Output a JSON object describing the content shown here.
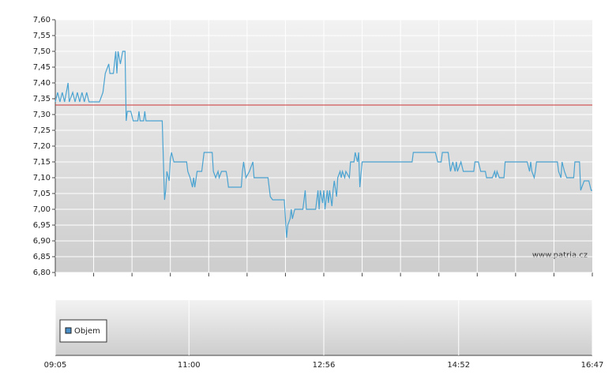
{
  "chart_data": [
    {
      "type": "line",
      "color": "#4aa3d1",
      "reference": {
        "value": 7.33,
        "color": "#cc3333"
      },
      "watermark": "www.patria.cz",
      "grid": true,
      "xlim": [
        "09:05",
        "16:47"
      ],
      "ylim": [
        6.8,
        7.6
      ],
      "yticks": [
        {
          "value": 6.8,
          "label": "6,80"
        },
        {
          "value": 6.85,
          "label": "6,85"
        },
        {
          "value": 6.9,
          "label": "6,90"
        },
        {
          "value": 6.95,
          "label": "6,95"
        },
        {
          "value": 7.0,
          "label": "7,00"
        },
        {
          "value": 7.05,
          "label": "7,05"
        },
        {
          "value": 7.1,
          "label": "7,10"
        },
        {
          "value": 7.15,
          "label": "7,15"
        },
        {
          "value": 7.2,
          "label": "7,20"
        },
        {
          "value": 7.25,
          "label": "7,25"
        },
        {
          "value": 7.3,
          "label": "7,30"
        },
        {
          "value": 7.35,
          "label": "7,35"
        },
        {
          "value": 7.4,
          "label": "7,40"
        },
        {
          "value": 7.45,
          "label": "7,45"
        },
        {
          "value": 7.5,
          "label": "7,50"
        },
        {
          "value": 7.55,
          "label": "7,55"
        },
        {
          "value": 7.6,
          "label": "7,60"
        }
      ],
      "x": [
        "09:05",
        "09:07",
        "09:09",
        "09:11",
        "09:13",
        "09:16",
        "09:17",
        "09:20",
        "09:22",
        "09:24",
        "09:26",
        "09:28",
        "09:30",
        "09:32",
        "09:34",
        "09:43",
        "09:46",
        "09:48",
        "09:51",
        "09:52",
        "09:55",
        "09:57",
        "09:58",
        "09:59",
        "10:01",
        "10:03",
        "10:05",
        "10:06",
        "10:07",
        "10:10",
        "10:12",
        "10:16",
        "10:17",
        "10:18",
        "10:21",
        "10:22",
        "10:23",
        "10:37",
        "10:39",
        "10:40",
        "10:41",
        "10:43",
        "10:44",
        "10:45",
        "10:47",
        "10:58",
        "10:59",
        "11:01",
        "11:03",
        "11:04",
        "11:05",
        "11:07",
        "11:11",
        "11:13",
        "11:20",
        "11:21",
        "11:23",
        "11:25",
        "11:26",
        "11:28",
        "11:32",
        "11:33",
        "11:34",
        "11:45",
        "11:46",
        "11:47",
        "11:49",
        "11:52",
        "11:55",
        "11:56",
        "12:08",
        "12:10",
        "12:12",
        "12:22",
        "12:24",
        "12:25",
        "12:27",
        "12:28",
        "12:29",
        "12:31",
        "12:38",
        "12:40",
        "12:41",
        "12:49",
        "12:51",
        "12:52",
        "12:53",
        "12:55",
        "12:56",
        "12:57",
        "12:59",
        "13:00",
        "13:01",
        "13:03",
        "13:04",
        "13:05",
        "13:07",
        "13:08",
        "13:10",
        "13:11",
        "13:12",
        "13:14",
        "13:15",
        "13:18",
        "13:19",
        "13:22",
        "13:23",
        "13:25",
        "13:26",
        "13:27",
        "13:29",
        "14:12",
        "14:13",
        "14:32",
        "14:34",
        "14:37",
        "14:38",
        "14:43",
        "14:45",
        "14:47",
        "14:49",
        "14:50",
        "14:51",
        "14:54",
        "14:56",
        "15:05",
        "15:06",
        "15:09",
        "15:11",
        "15:15",
        "15:16",
        "15:21",
        "15:23",
        "15:24",
        "15:25",
        "15:27",
        "15:31",
        "15:32",
        "15:51",
        "15:53",
        "15:54",
        "15:55",
        "15:57",
        "15:58",
        "15:59",
        "16:17",
        "16:18",
        "16:20",
        "16:21",
        "16:23",
        "16:25",
        "16:31",
        "16:32",
        "16:36",
        "16:37",
        "16:40",
        "16:44",
        "16:46",
        "16:47"
      ],
      "values": [
        7.34,
        7.37,
        7.34,
        7.37,
        7.34,
        7.4,
        7.34,
        7.37,
        7.34,
        7.37,
        7.34,
        7.37,
        7.34,
        7.37,
        7.34,
        7.34,
        7.37,
        7.43,
        7.46,
        7.43,
        7.43,
        7.5,
        7.43,
        7.5,
        7.46,
        7.5,
        7.5,
        7.28,
        7.31,
        7.31,
        7.28,
        7.28,
        7.31,
        7.28,
        7.28,
        7.31,
        7.28,
        7.28,
        7.03,
        7.06,
        7.12,
        7.09,
        7.16,
        7.18,
        7.15,
        7.15,
        7.12,
        7.1,
        7.07,
        7.1,
        7.07,
        7.12,
        7.12,
        7.18,
        7.18,
        7.12,
        7.1,
        7.12,
        7.1,
        7.12,
        7.12,
        7.1,
        7.07,
        7.07,
        7.12,
        7.15,
        7.1,
        7.12,
        7.15,
        7.1,
        7.1,
        7.04,
        7.03,
        7.03,
        6.91,
        6.95,
        6.97,
        7.0,
        6.97,
        7.0,
        7.0,
        7.06,
        7.0,
        7.0,
        7.06,
        7.0,
        7.06,
        7.02,
        7.06,
        7.0,
        7.06,
        7.02,
        7.06,
        7.01,
        7.06,
        7.09,
        7.04,
        7.1,
        7.12,
        7.1,
        7.12,
        7.1,
        7.12,
        7.1,
        7.15,
        7.15,
        7.18,
        7.15,
        7.18,
        7.07,
        7.15,
        7.15,
        7.18,
        7.18,
        7.15,
        7.15,
        7.18,
        7.18,
        7.12,
        7.15,
        7.12,
        7.15,
        7.12,
        7.15,
        7.12,
        7.12,
        7.15,
        7.15,
        7.12,
        7.12,
        7.1,
        7.1,
        7.12,
        7.1,
        7.12,
        7.1,
        7.1,
        7.15,
        7.15,
        7.12,
        7.15,
        7.12,
        7.1,
        7.12,
        7.15,
        7.15,
        7.12,
        7.1,
        7.15,
        7.12,
        7.1,
        7.1,
        7.15,
        7.15,
        7.06,
        7.09,
        7.09,
        7.06,
        7.06
      ]
    },
    {
      "type": "bar",
      "xlim": [
        "09:05",
        "16:47"
      ],
      "xticks": [
        "09:05",
        "11:00",
        "12:56",
        "14:52",
        "16:47"
      ],
      "series": [
        {
          "name": "Objem",
          "color": "#4a8fc7",
          "values": []
        }
      ]
    }
  ]
}
